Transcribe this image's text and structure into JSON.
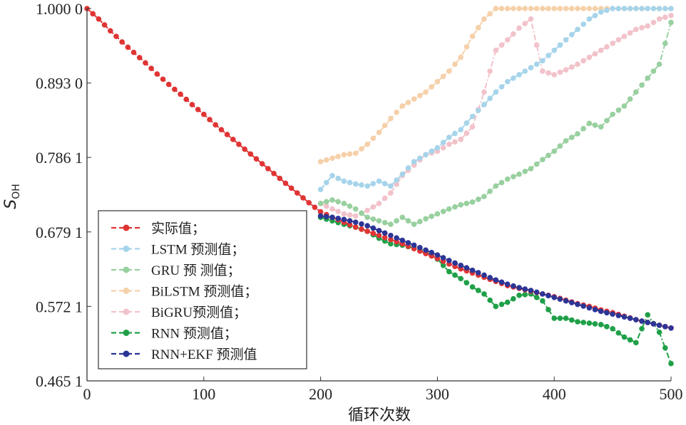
{
  "chart_data": {
    "type": "line",
    "xlabel": "循环次数",
    "ylabel": "S",
    "ylabel_sub": "OH",
    "xlim": [
      0,
      500
    ],
    "ylim": [
      0.4651,
      1.0
    ],
    "xticks": [
      0,
      100,
      200,
      300,
      400,
      500
    ],
    "xtick_labels": [
      "0",
      "100",
      "200",
      "300",
      "400",
      "500"
    ],
    "yticks": [
      0.4651,
      0.5721,
      0.6791,
      0.7861,
      0.893,
      1.0
    ],
    "ytick_labels": [
      "0.465 1",
      "0.572 1",
      "0.679 1",
      "0.786 1",
      "0.893 0",
      "1.000 0"
    ],
    "grid": false,
    "legend_position": "lower-left",
    "series": [
      {
        "name": "实际值；",
        "color": "#e03434",
        "x": [
          0,
          10,
          20,
          30,
          40,
          50,
          60,
          70,
          80,
          90,
          100,
          110,
          120,
          130,
          140,
          150,
          160,
          170,
          180,
          190,
          200,
          210,
          220,
          230,
          240,
          250,
          260,
          270,
          280,
          290,
          300,
          310,
          320,
          330,
          340,
          350,
          360,
          370,
          380,
          390,
          400,
          410,
          420,
          430,
          440,
          450,
          460,
          470,
          480,
          490,
          500
        ],
        "y": [
          1.0,
          0.985,
          0.968,
          0.952,
          0.937,
          0.922,
          0.906,
          0.891,
          0.877,
          0.862,
          0.848,
          0.833,
          0.819,
          0.805,
          0.791,
          0.777,
          0.763,
          0.749,
          0.735,
          0.721,
          0.708,
          0.7,
          0.693,
          0.686,
          0.68,
          0.674,
          0.668,
          0.662,
          0.655,
          0.648,
          0.641,
          0.633,
          0.626,
          0.62,
          0.614,
          0.608,
          0.602,
          0.598,
          0.594,
          0.59,
          0.586,
          0.581,
          0.576,
          0.572,
          0.567,
          0.563,
          0.558,
          0.553,
          0.549,
          0.545,
          0.541
        ]
      },
      {
        "name": "LSTM 预测值；",
        "color": "#a6d4ea",
        "x": [
          200,
          210,
          220,
          230,
          240,
          250,
          260,
          270,
          280,
          290,
          300,
          310,
          320,
          330,
          340,
          350,
          360,
          370,
          380,
          390,
          400,
          410,
          420,
          430,
          440,
          450,
          460,
          470,
          480,
          490,
          500
        ],
        "y": [
          0.74,
          0.76,
          0.752,
          0.748,
          0.745,
          0.752,
          0.745,
          0.762,
          0.78,
          0.79,
          0.8,
          0.815,
          0.826,
          0.845,
          0.862,
          0.88,
          0.895,
          0.905,
          0.915,
          0.925,
          0.94,
          0.955,
          0.97,
          0.985,
          0.995,
          1.0,
          1.0,
          1.0,
          1.0,
          1.0,
          1.0
        ]
      },
      {
        "name": "GRU 预 测值；",
        "color": "#98d09f",
        "x": [
          200,
          210,
          220,
          230,
          240,
          250,
          260,
          270,
          280,
          290,
          300,
          310,
          320,
          330,
          340,
          350,
          360,
          370,
          380,
          390,
          400,
          410,
          420,
          430,
          440,
          450,
          460,
          470,
          480,
          490,
          500
        ],
        "y": [
          0.72,
          0.725,
          0.72,
          0.712,
          0.7,
          0.695,
          0.69,
          0.7,
          0.69,
          0.698,
          0.705,
          0.712,
          0.718,
          0.722,
          0.73,
          0.745,
          0.755,
          0.762,
          0.77,
          0.783,
          0.795,
          0.81,
          0.82,
          0.835,
          0.83,
          0.848,
          0.86,
          0.88,
          0.9,
          0.92,
          0.98
        ]
      },
      {
        "name": "BiLSTM  预测值；",
        "color": "#f5d0a9",
        "x": [
          200,
          210,
          220,
          230,
          240,
          250,
          260,
          270,
          280,
          290,
          300,
          310,
          320,
          330,
          340,
          350,
          360,
          370,
          380,
          390,
          400,
          410,
          420,
          430,
          440,
          450,
          460,
          470,
          480,
          490,
          500
        ],
        "y": [
          0.78,
          0.785,
          0.79,
          0.792,
          0.805,
          0.822,
          0.842,
          0.86,
          0.87,
          0.88,
          0.895,
          0.91,
          0.93,
          0.96,
          0.985,
          1.0,
          1.0,
          1.0,
          1.0,
          1.0,
          1.0,
          1.0,
          1.0,
          1.0,
          1.0,
          1.0,
          1.0,
          1.0,
          1.0,
          1.0,
          1.0
        ]
      },
      {
        "name": "BiGRU预测值；",
        "color": "#f2c2ca",
        "x": [
          200,
          210,
          220,
          230,
          240,
          250,
          260,
          270,
          280,
          290,
          300,
          310,
          320,
          330,
          340,
          350,
          360,
          370,
          380,
          390,
          400,
          410,
          420,
          430,
          440,
          450,
          460,
          470,
          480,
          490,
          500
        ],
        "y": [
          0.72,
          0.712,
          0.705,
          0.702,
          0.71,
          0.72,
          0.735,
          0.76,
          0.775,
          0.79,
          0.795,
          0.805,
          0.812,
          0.83,
          0.88,
          0.94,
          0.955,
          0.972,
          0.985,
          0.91,
          0.905,
          0.912,
          0.92,
          0.93,
          0.94,
          0.95,
          0.96,
          0.97,
          0.975,
          0.985,
          0.99
        ]
      },
      {
        "name": "RNN 预测值；",
        "color": "#1fa048",
        "x": [
          200,
          210,
          220,
          230,
          240,
          250,
          260,
          270,
          280,
          290,
          300,
          310,
          320,
          330,
          340,
          350,
          360,
          370,
          380,
          390,
          400,
          410,
          420,
          430,
          440,
          450,
          460,
          470,
          480,
          490,
          500
        ],
        "y": [
          0.7,
          0.695,
          0.69,
          0.686,
          0.68,
          0.67,
          0.662,
          0.66,
          0.656,
          0.65,
          0.64,
          0.622,
          0.612,
          0.6,
          0.59,
          0.572,
          0.578,
          0.588,
          0.59,
          0.58,
          0.555,
          0.555,
          0.55,
          0.548,
          0.546,
          0.54,
          0.528,
          0.52,
          0.56,
          0.535,
          0.49
        ]
      },
      {
        "name": "RNN+EKF 预测值",
        "color": "#2c3596",
        "x": [
          200,
          210,
          220,
          230,
          240,
          250,
          260,
          270,
          280,
          290,
          300,
          310,
          320,
          330,
          340,
          350,
          360,
          370,
          380,
          390,
          400,
          410,
          420,
          430,
          440,
          450,
          460,
          470,
          480,
          490,
          500
        ],
        "y": [
          0.702,
          0.7,
          0.697,
          0.693,
          0.688,
          0.681,
          0.674,
          0.667,
          0.66,
          0.653,
          0.646,
          0.638,
          0.631,
          0.624,
          0.617,
          0.61,
          0.604,
          0.599,
          0.595,
          0.59,
          0.585,
          0.58,
          0.575,
          0.57,
          0.565,
          0.561,
          0.557,
          0.553,
          0.549,
          0.545,
          0.541
        ]
      }
    ]
  }
}
